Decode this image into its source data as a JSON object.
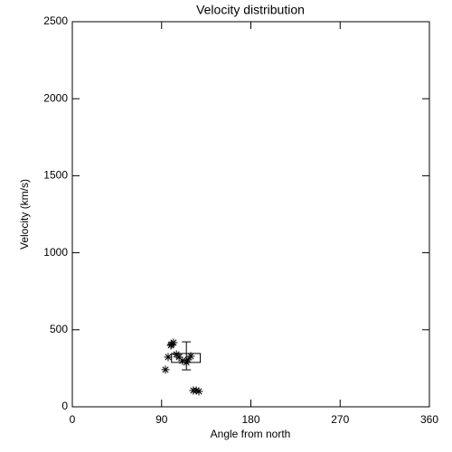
{
  "chart_data": {
    "type": "scatter",
    "title": "Velocity distribution",
    "x_label": "Angle from north",
    "y_label": "Velocity (km/s)",
    "xlim": [
      0,
      360
    ],
    "ylim": [
      0,
      2500
    ],
    "xticks": [
      0,
      90,
      180,
      270,
      360
    ],
    "yticks": [
      0,
      500,
      1000,
      1500,
      2000,
      2500
    ],
    "color": "#000000",
    "x": [
      93.9,
      96.6,
      99.4,
      100,
      102,
      105,
      107.6,
      111,
      115,
      116.7,
      119.4,
      122,
      125,
      127.6
    ],
    "values": [
      241,
      323,
      399,
      405,
      417,
      340,
      323,
      299,
      288,
      305,
      329,
      106,
      106,
      100
    ],
    "box": {
      "x": [
        100,
        129
      ],
      "y": [
        288,
        346
      ]
    },
    "errorbar": {
      "x": 115,
      "y": 331,
      "error": 91
    }
  }
}
